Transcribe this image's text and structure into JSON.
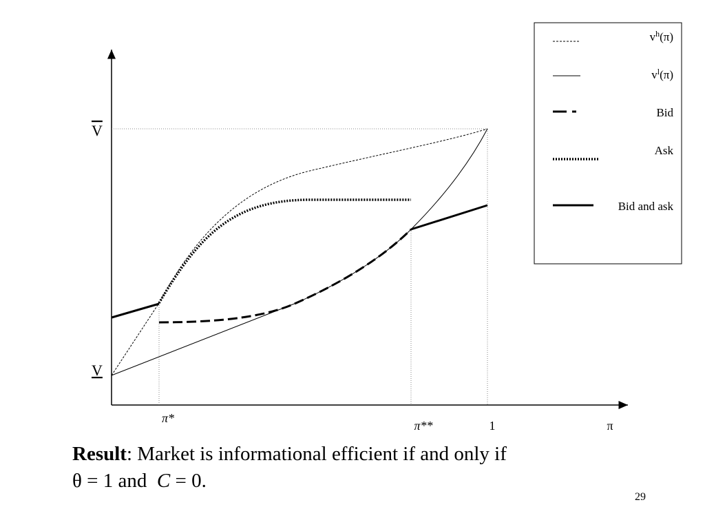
{
  "axes": {
    "y_top_label": "V",
    "y_bottom_label": "V",
    "x_ticks": [
      "π*",
      "π**",
      "1"
    ],
    "x_label": "π"
  },
  "legend": [
    {
      "base": "v",
      "sup": "h",
      "arg": "(π)"
    },
    {
      "base": "v",
      "sup": "l",
      "arg": "(π)"
    },
    {
      "label": "Bid"
    },
    {
      "label": "Ask"
    },
    {
      "label": "Bid and ask"
    }
  ],
  "result": {
    "bold": "Result",
    "line1": ": Market is informational efficient if and only if",
    "line2": [
      "θ = 1 and  ",
      "C",
      " = 0."
    ]
  },
  "page_number": "29"
}
